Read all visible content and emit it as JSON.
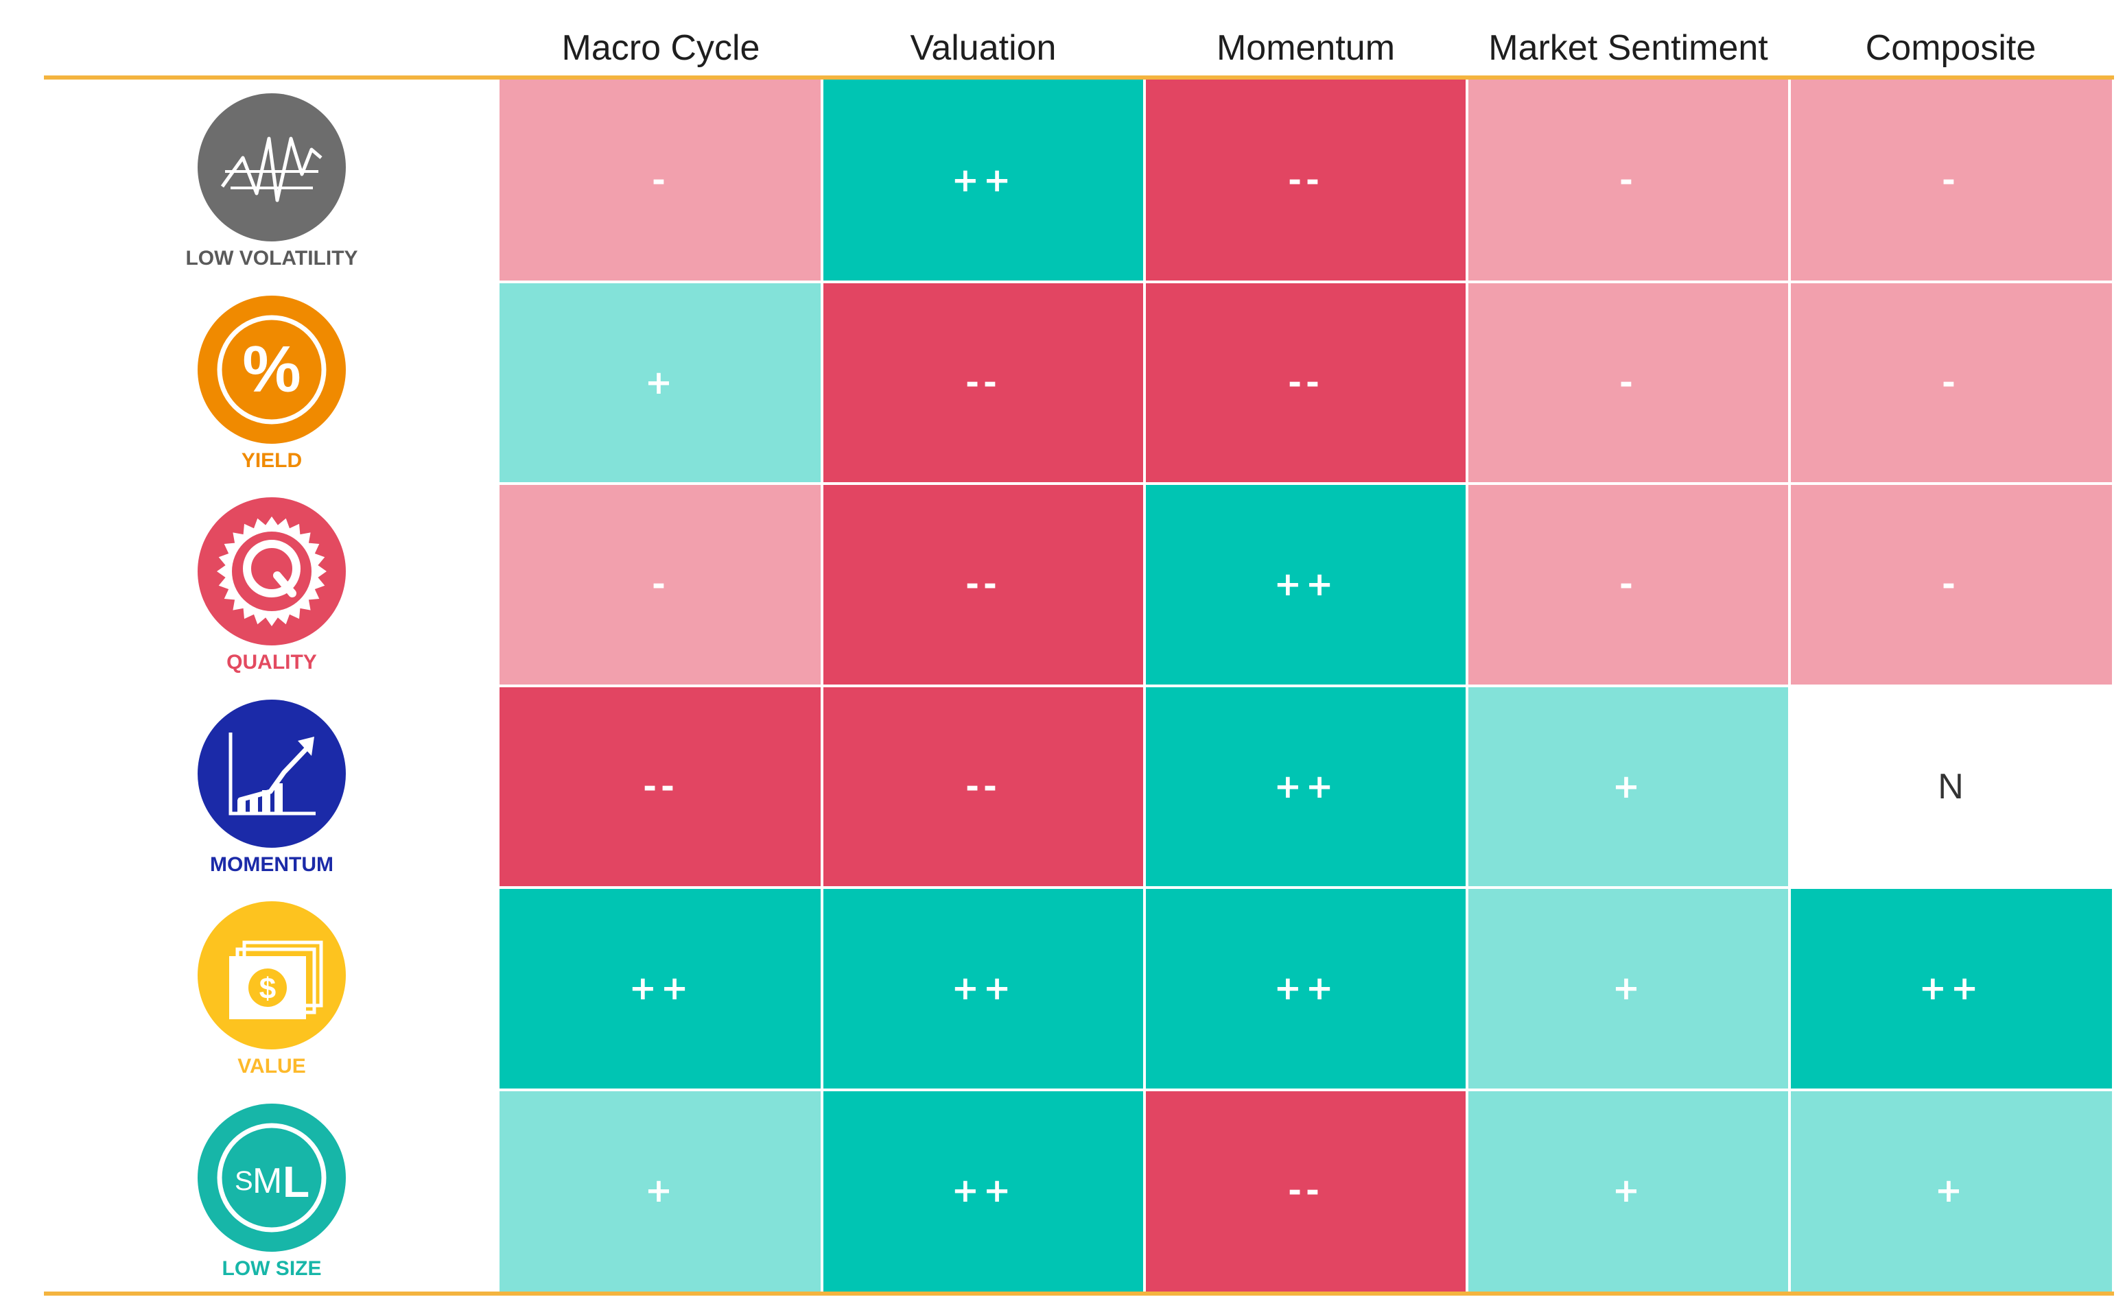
{
  "chart_data": {
    "type": "table",
    "columns": [
      "Macro Cycle",
      "Valuation",
      "Momentum",
      "Market Sentiment",
      "Composite"
    ],
    "rows": [
      {
        "label": "LOW VOLATILITY",
        "icon": "low-volatility-icon",
        "color": "#6d6d6d",
        "values": [
          "-",
          "++",
          "--",
          "-",
          "-"
        ]
      },
      {
        "label": "YIELD",
        "icon": "yield-percent-icon",
        "color": "#f08a00",
        "values": [
          "+",
          "--",
          "--",
          "-",
          "-"
        ]
      },
      {
        "label": "QUALITY",
        "icon": "quality-q-icon",
        "color": "#e34a60",
        "values": [
          "-",
          "--",
          "++",
          "-",
          "-"
        ]
      },
      {
        "label": "MOMENTUM",
        "icon": "momentum-chart-icon",
        "color": "#1b2aa8",
        "values": [
          "--",
          "--",
          "++",
          "+",
          "N"
        ]
      },
      {
        "label": "VALUE",
        "icon": "value-dollar-icon",
        "color": "#fdc31f",
        "values": [
          "++",
          "++",
          "++",
          "+",
          "++"
        ]
      },
      {
        "label": "LOW SIZE",
        "icon": "low-size-sml-icon",
        "color": "#17b6a8",
        "values": [
          "+",
          "++",
          "--",
          "+",
          "+"
        ]
      }
    ],
    "value_colors": {
      "++": "#00c5b3",
      "+": "#83e2d9",
      "N": "#ffffff",
      "-": "#f2a0ad",
      "--": "#e24562"
    },
    "label_colors": {
      "LOW VOLATILITY": "#5a5a5a",
      "YIELD": "#f08a00",
      "QUALITY": "#e34a60",
      "MOMENTUM": "#1b2aa8",
      "VALUE": "#fdb92a",
      "LOW SIZE": "#17b6a8"
    },
    "rule_color": "#f4b43f"
  }
}
